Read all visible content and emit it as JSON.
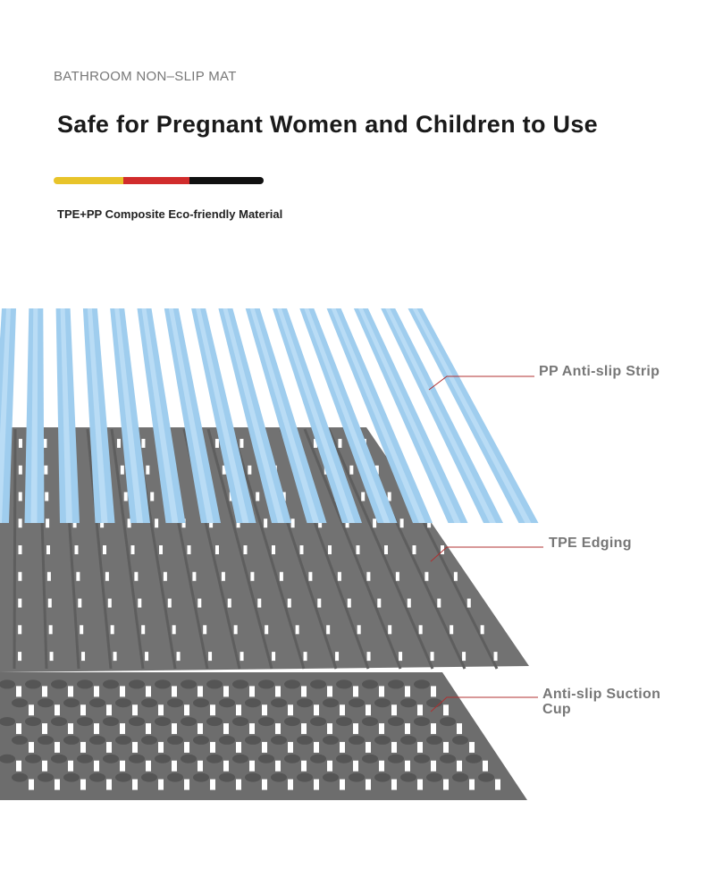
{
  "header": {
    "eyebrow": "BATHROOM NON–SLIP MAT",
    "title": "Safe for Pregnant Women and Children to Use",
    "subtitle": "TPE+PP Composite Eco-friendly Material"
  },
  "layers": [
    {
      "label": "PP Anti-slip Strip"
    },
    {
      "label": "TPE Edging"
    },
    {
      "label": "Anti-slip Suction Cup"
    }
  ]
}
